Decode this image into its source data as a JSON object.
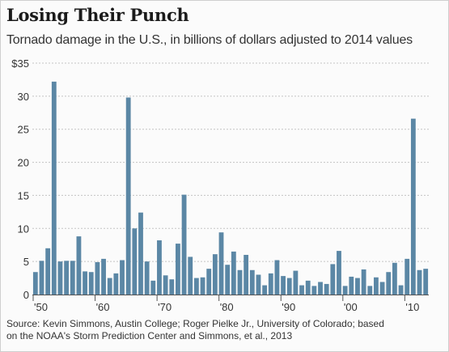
{
  "chart_data": {
    "type": "bar",
    "title": "Losing Their Punch",
    "subtitle": "Tornado damage in the U.S., in billions of dollars adjusted to 2014 values",
    "source": "Source: Kevin Simmons, Austin College; Roger Pielke Jr., University of Colorado; based on the NOAA's Storm Prediction Center and Simmons, et al., 2013",
    "x": [
      1950,
      1951,
      1952,
      1953,
      1954,
      1955,
      1956,
      1957,
      1958,
      1959,
      1960,
      1961,
      1962,
      1963,
      1964,
      1965,
      1966,
      1967,
      1968,
      1969,
      1970,
      1971,
      1972,
      1973,
      1974,
      1975,
      1976,
      1977,
      1978,
      1979,
      1980,
      1981,
      1982,
      1983,
      1984,
      1985,
      1986,
      1987,
      1988,
      1989,
      1990,
      1991,
      1992,
      1993,
      1994,
      1995,
      1996,
      1997,
      1998,
      1999,
      2000,
      2001,
      2002,
      2003,
      2004,
      2005,
      2006,
      2007,
      2008,
      2009,
      2010,
      2011,
      2012,
      2013
    ],
    "values": [
      3.4,
      5.1,
      7.0,
      32.2,
      5.0,
      5.1,
      5.1,
      8.8,
      3.5,
      3.4,
      4.9,
      5.4,
      2.5,
      3.2,
      5.2,
      29.8,
      10.0,
      12.4,
      5.0,
      2.1,
      8.2,
      2.9,
      2.3,
      7.7,
      15.1,
      5.7,
      2.5,
      2.6,
      3.9,
      6.1,
      9.4,
      4.5,
      6.5,
      3.7,
      6.0,
      3.7,
      3.0,
      1.4,
      3.2,
      5.2,
      2.8,
      2.5,
      3.6,
      1.4,
      2.1,
      1.3,
      1.9,
      1.6,
      4.6,
      6.6,
      1.3,
      2.7,
      2.5,
      3.8,
      1.3,
      2.6,
      1.9,
      3.4,
      4.8,
      1.4,
      5.4,
      26.6,
      3.7,
      3.9
    ],
    "yticks": [
      {
        "v": 0,
        "label": "0"
      },
      {
        "v": 5,
        "label": "5"
      },
      {
        "v": 10,
        "label": "10"
      },
      {
        "v": 15,
        "label": "15"
      },
      {
        "v": 20,
        "label": "20"
      },
      {
        "v": 25,
        "label": "25"
      },
      {
        "v": 30,
        "label": "30"
      },
      {
        "v": 35,
        "label": "$35"
      }
    ],
    "xticks": [
      {
        "year": 1950,
        "label": "'50"
      },
      {
        "year": 1960,
        "label": "'60"
      },
      {
        "year": 1970,
        "label": "'70"
      },
      {
        "year": 1980,
        "label": "'80"
      },
      {
        "year": 1990,
        "label": "'90"
      },
      {
        "year": 2000,
        "label": "'00"
      },
      {
        "year": 2010,
        "label": "'10"
      }
    ],
    "ylim": [
      0,
      35
    ],
    "grid": true,
    "bar_color": "#5b87a5",
    "grid_color": "#c4c4c4"
  }
}
